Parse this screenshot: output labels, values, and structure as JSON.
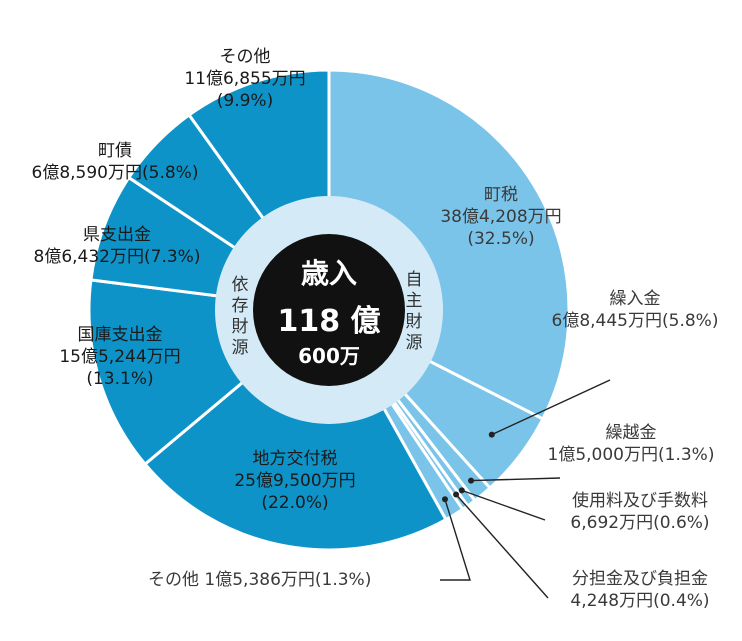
{
  "chart_data": {
    "type": "pie",
    "center": {
      "title": "歳入",
      "amount": "118 億",
      "amount_sub": "600万"
    },
    "ring_labels": {
      "own": "自主財源",
      "dependent": "依存財源"
    },
    "slices": [
      {
        "id": "choze",
        "group": "own",
        "name": "町税",
        "amount": "38億4,208万円",
        "pct": "(32.5%)",
        "value": 32.5,
        "color": "#7ac4ea"
      },
      {
        "id": "kuriire",
        "group": "own",
        "name": "繰入金",
        "amount": "6億8,445万円",
        "pct": "(5.8%)",
        "value": 5.8,
        "color": "#7ac4ea"
      },
      {
        "id": "kurikoshi",
        "group": "own",
        "name": "繰越金",
        "amount": "1億5,000万円",
        "pct": "(1.3%)",
        "value": 1.3,
        "color": "#7ac4ea"
      },
      {
        "id": "shiyoryo",
        "group": "own",
        "name": "使用料及び手数料",
        "amount": "6,692万円",
        "pct": "(0.6%)",
        "value": 0.6,
        "color": "#7ac4ea"
      },
      {
        "id": "buntan",
        "group": "own",
        "name": "分担金及び負担金",
        "amount": "4,248万円",
        "pct": "(0.4%)",
        "value": 0.4,
        "color": "#7ac4ea"
      },
      {
        "id": "sonota_own",
        "group": "own",
        "name": "その他",
        "amount": "1億5,386万円",
        "pct": "(1.3%)",
        "value": 1.3,
        "color": "#7ac4ea"
      },
      {
        "id": "chiho",
        "group": "dependent",
        "name": "地方交付税",
        "amount": "25億9,500万円",
        "pct": "(22.0%)",
        "value": 22.0,
        "color": "#0d93c7"
      },
      {
        "id": "kokko",
        "group": "dependent",
        "name": "国庫支出金",
        "amount": "15億5,244万円",
        "pct": "(13.1%)",
        "value": 13.1,
        "color": "#0d93c7"
      },
      {
        "id": "ken",
        "group": "dependent",
        "name": "県支出金",
        "amount": "8億6,432万円",
        "pct": "(7.3%)",
        "value": 7.3,
        "color": "#0d93c7"
      },
      {
        "id": "chosai",
        "group": "dependent",
        "name": "町債",
        "amount": "6億8,590万円",
        "pct": "(5.8%)",
        "value": 5.8,
        "color": "#0d93c7"
      },
      {
        "id": "sonota_dep",
        "group": "dependent",
        "name": "その他",
        "amount": "11億6,855万円",
        "pct": "(9.9%)",
        "value": 9.9,
        "color": "#0d93c7"
      }
    ]
  }
}
